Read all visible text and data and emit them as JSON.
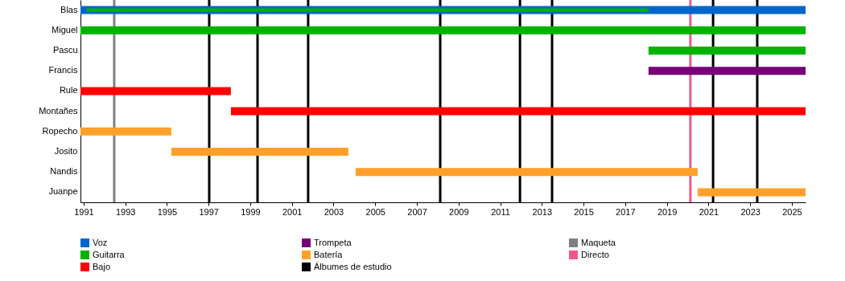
{
  "chart_data": {
    "type": "bar",
    "orientation": "horizontal",
    "categories": [
      "Blas",
      "Miguel",
      "Pascu",
      "Francis",
      "Rule",
      "Montañes",
      "Ropecho",
      "Josito",
      "Nandis",
      "Juanpe"
    ],
    "series": [
      {
        "name": "Voz",
        "color": "#0066cc",
        "base": [
          1990.85,
          null,
          null,
          null,
          null,
          null,
          null,
          null,
          null,
          null
        ],
        "values": [
          34.81,
          null,
          null,
          null,
          null,
          null,
          null,
          null,
          null,
          null
        ]
      },
      {
        "name": "Guitarra",
        "color": "#00b300",
        "base": [
          1991.15,
          1990.85,
          2018.12,
          null,
          null,
          null,
          null,
          null,
          null,
          null
        ],
        "values": [
          26.97,
          34.81,
          7.54,
          null,
          null,
          null,
          null,
          null,
          null,
          null
        ]
      },
      {
        "name": "Bajo",
        "color": "#ff0000",
        "base": [
          null,
          null,
          null,
          null,
          1990.85,
          1998.07,
          null,
          null,
          null,
          null
        ],
        "values": [
          null,
          null,
          null,
          null,
          7.22,
          27.59,
          null,
          null,
          null,
          null
        ]
      },
      {
        "name": "Trompeta",
        "color": "#770077",
        "base": [
          null,
          null,
          null,
          2018.12,
          null,
          null,
          null,
          null,
          null,
          null
        ],
        "values": [
          null,
          null,
          null,
          7.54,
          null,
          null,
          null,
          null,
          null,
          null
        ]
      },
      {
        "name": "Batería",
        "color": "#ffa02a",
        "base": [
          null,
          null,
          null,
          null,
          null,
          null,
          1990.85,
          1995.21,
          2004.06,
          2020.48
        ],
        "values": [
          null,
          null,
          null,
          null,
          null,
          null,
          4.36,
          8.5,
          16.42,
          5.18
        ]
      }
    ],
    "ref_lines": [
      {
        "axis": "x",
        "value": 1997.03,
        "label": "Álbumes de estudio",
        "color": "#000000"
      },
      {
        "axis": "x",
        "value": 1999.35,
        "color": "#000000"
      },
      {
        "axis": "x",
        "value": 2001.78,
        "color": "#000000"
      },
      {
        "axis": "x",
        "value": 2008.12,
        "color": "#000000"
      },
      {
        "axis": "x",
        "value": 2011.95,
        "color": "#000000"
      },
      {
        "axis": "x",
        "value": 2013.49,
        "color": "#000000"
      },
      {
        "axis": "x",
        "value": 2021.22,
        "color": "#000000"
      },
      {
        "axis": "x",
        "value": 2023.34,
        "color": "#000000"
      },
      {
        "axis": "x",
        "value": 1992.47,
        "label": "Maqueta",
        "color": "#808080"
      },
      {
        "axis": "x",
        "value": 2020.13,
        "label": "Directo",
        "color": "#f0588c"
      }
    ],
    "xlim": [
      1990.85,
      2025.66
    ],
    "xticks": [
      1991,
      1993,
      1995,
      1997,
      1999,
      2001,
      2003,
      2005,
      2007,
      2009,
      2011,
      2013,
      2015,
      2017,
      2019,
      2021,
      2023,
      2025
    ],
    "legend": "bottom",
    "grid": false
  }
}
